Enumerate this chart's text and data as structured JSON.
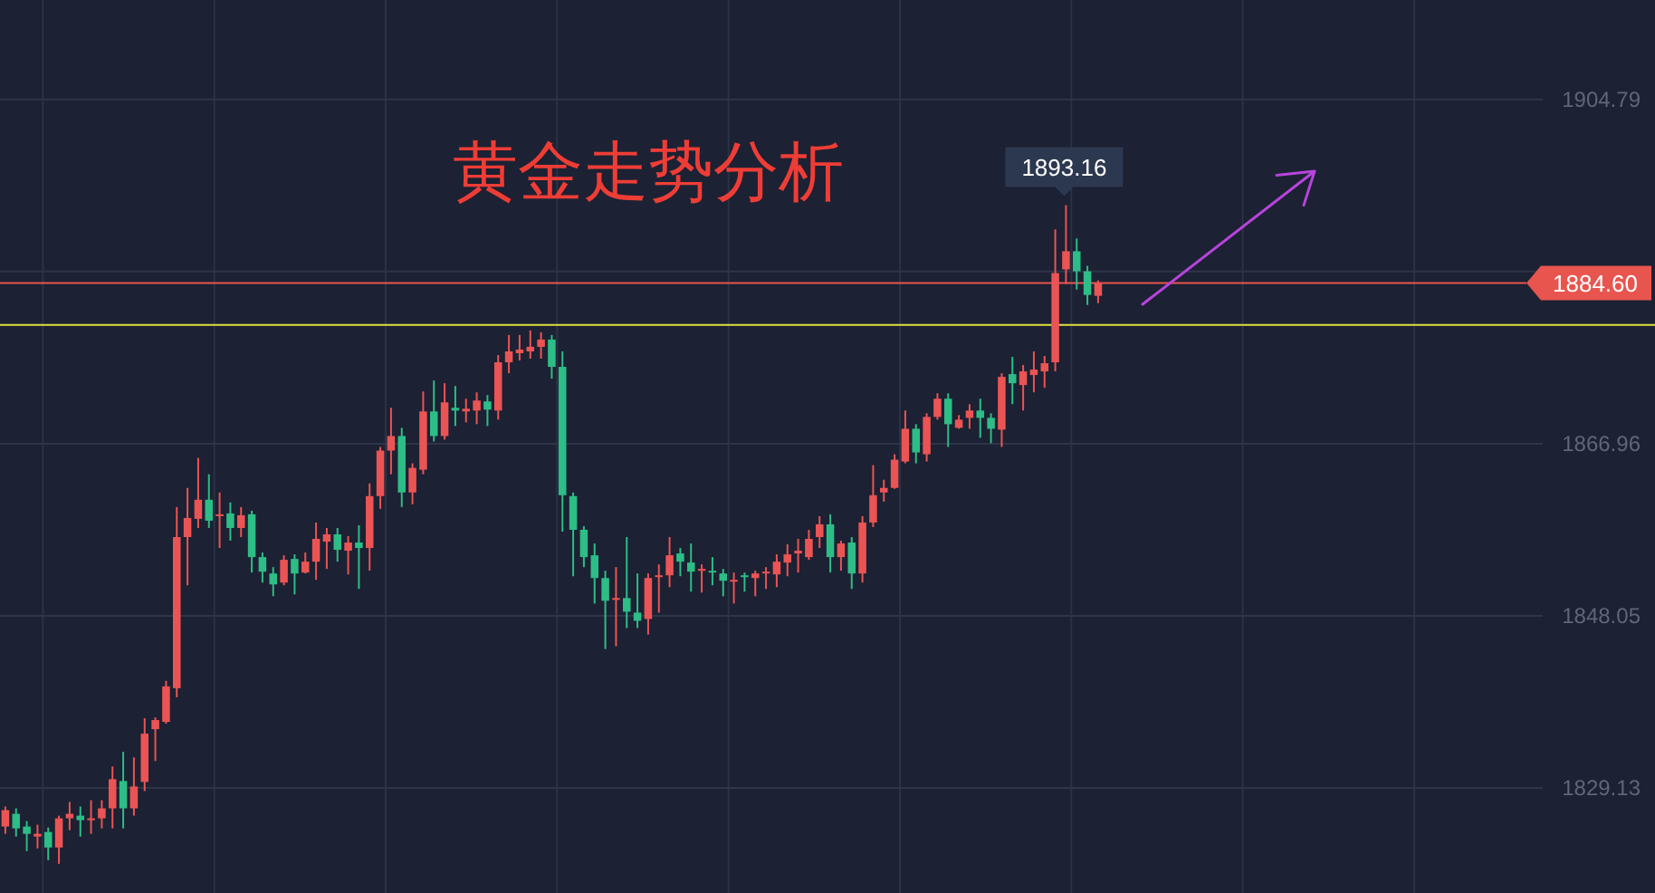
{
  "chart_data": {
    "type": "candlestick",
    "title": "黄金走势分析",
    "categories": [
      null,
      null,
      null,
      null,
      null,
      null,
      null,
      null,
      null,
      null,
      null,
      null,
      null,
      null,
      null,
      null,
      null,
      null,
      null,
      null,
      null,
      null,
      null,
      null,
      null,
      null,
      null,
      null,
      null,
      null,
      null,
      null,
      null,
      null,
      null,
      null,
      null,
      null,
      null,
      null,
      null,
      null,
      null,
      null,
      null,
      null,
      null,
      null,
      null,
      null,
      null,
      null,
      null,
      null,
      null,
      null,
      null,
      null,
      null,
      null,
      null,
      null,
      null,
      null,
      null,
      null,
      null,
      null,
      null,
      null,
      null,
      null,
      null,
      null,
      null,
      null,
      null,
      null,
      null,
      null,
      null,
      null,
      null,
      null,
      null,
      null,
      null,
      null,
      null,
      null,
      null,
      null,
      null,
      null,
      null,
      null,
      null,
      null,
      null,
      null,
      null,
      null,
      null,
      null,
      null,
      null,
      null,
      null,
      null,
      null,
      null,
      null,
      null,
      null,
      null,
      null,
      null,
      null,
      null,
      null,
      null,
      null,
      null,
      null,
      null,
      null,
      null,
      null,
      null,
      null,
      null,
      null,
      null,
      null,
      null,
      null,
      null,
      null,
      null,
      null,
      null,
      null,
      null,
      null
    ],
    "ohlc": [
      [
        1824.9,
        1827.1,
        1824.1,
        1826.7
      ],
      [
        1826.3,
        1826.9,
        1823.8,
        1824.7
      ],
      [
        1824.9,
        1825.5,
        1822.2,
        1824.1
      ],
      [
        1823.8,
        1825.1,
        1822.5,
        1824.1
      ],
      [
        1824.3,
        1824.8,
        1821.2,
        1822.6
      ],
      [
        1822.6,
        1826.1,
        1820.8,
        1825.8
      ],
      [
        1825.8,
        1827.6,
        1824.5,
        1826.3
      ],
      [
        1826.1,
        1827.1,
        1823.8,
        1825.6
      ],
      [
        1825.6,
        1827.8,
        1824.1,
        1825.8
      ],
      [
        1825.8,
        1827.8,
        1824.7,
        1826.9
      ],
      [
        1826.9,
        1831.5,
        1824.7,
        1830.1
      ],
      [
        1829.9,
        1833.1,
        1824.7,
        1826.9
      ],
      [
        1826.9,
        1832.5,
        1826.1,
        1829.3
      ],
      [
        1829.8,
        1836.8,
        1828.8,
        1835.1
      ],
      [
        1835.6,
        1836.9,
        1832.1,
        1836.6
      ],
      [
        1836.4,
        1840.9,
        1836.2,
        1840.3
      ],
      [
        1840.1,
        1860.0,
        1839.1,
        1856.7
      ],
      [
        1856.7,
        1862.1,
        1851.4,
        1858.8
      ],
      [
        1858.7,
        1865.4,
        1857.7,
        1860.8
      ],
      [
        1860.8,
        1863.6,
        1857.7,
        1858.5
      ],
      [
        1859.0,
        1861.6,
        1855.5,
        1859.2
      ],
      [
        1859.3,
        1860.5,
        1856.3,
        1857.7
      ],
      [
        1857.7,
        1860.0,
        1856.7,
        1859.1
      ],
      [
        1859.2,
        1859.6,
        1852.8,
        1854.5
      ],
      [
        1854.5,
        1855.0,
        1851.7,
        1852.9
      ],
      [
        1852.7,
        1853.4,
        1850.2,
        1851.5
      ],
      [
        1851.7,
        1854.7,
        1851.4,
        1854.2
      ],
      [
        1854.3,
        1854.8,
        1850.4,
        1852.7
      ],
      [
        1852.8,
        1855.0,
        1852.7,
        1854.0
      ],
      [
        1854.0,
        1858.3,
        1852.0,
        1856.5
      ],
      [
        1856.2,
        1857.7,
        1853.2,
        1857.0
      ],
      [
        1857.0,
        1857.7,
        1854.0,
        1855.3
      ],
      [
        1855.2,
        1856.8,
        1852.6,
        1856.1
      ],
      [
        1856.1,
        1858.0,
        1851.0,
        1855.5
      ],
      [
        1855.5,
        1862.6,
        1853.0,
        1861.2
      ],
      [
        1861.2,
        1866.6,
        1859.8,
        1866.2
      ],
      [
        1866.2,
        1870.9,
        1863.6,
        1867.8
      ],
      [
        1867.8,
        1868.7,
        1860.0,
        1861.6
      ],
      [
        1861.6,
        1864.8,
        1860.3,
        1864.3
      ],
      [
        1864.1,
        1872.7,
        1863.6,
        1870.5
      ],
      [
        1870.5,
        1873.9,
        1867.2,
        1867.8
      ],
      [
        1867.8,
        1873.6,
        1867.4,
        1871.5
      ],
      [
        1870.9,
        1873.3,
        1868.9,
        1870.6
      ],
      [
        1870.5,
        1871.9,
        1869.3,
        1870.8
      ],
      [
        1870.6,
        1872.6,
        1869.1,
        1871.7
      ],
      [
        1871.6,
        1872.3,
        1868.9,
        1870.7
      ],
      [
        1870.6,
        1876.7,
        1869.6,
        1875.9
      ],
      [
        1875.9,
        1878.9,
        1874.7,
        1877.1
      ],
      [
        1876.9,
        1878.9,
        1876.1,
        1877.3
      ],
      [
        1877.1,
        1879.4,
        1876.3,
        1877.6
      ],
      [
        1877.6,
        1879.2,
        1876.3,
        1878.4
      ],
      [
        1878.4,
        1878.9,
        1874.1,
        1875.4
      ],
      [
        1875.4,
        1877.1,
        1857.3,
        1861.3
      ],
      [
        1861.2,
        1861.6,
        1852.4,
        1857.5
      ],
      [
        1857.5,
        1857.9,
        1853.4,
        1854.5
      ],
      [
        1854.7,
        1856.0,
        1849.4,
        1852.2
      ],
      [
        1852.2,
        1853.0,
        1844.4,
        1849.7
      ],
      [
        1849.8,
        1853.4,
        1844.7,
        1850.0
      ],
      [
        1850.0,
        1856.7,
        1846.7,
        1848.5
      ],
      [
        1848.4,
        1852.7,
        1846.7,
        1847.5
      ],
      [
        1847.7,
        1852.7,
        1846.0,
        1852.2
      ],
      [
        1852.3,
        1853.7,
        1848.4,
        1852.5
      ],
      [
        1852.5,
        1856.7,
        1851.2,
        1854.7
      ],
      [
        1854.9,
        1855.5,
        1852.4,
        1854.0
      ],
      [
        1853.9,
        1856.0,
        1850.7,
        1852.9
      ],
      [
        1853.0,
        1853.7,
        1850.6,
        1853.2
      ],
      [
        1853.0,
        1854.5,
        1851.4,
        1852.8
      ],
      [
        1852.7,
        1853.2,
        1850.2,
        1851.9
      ],
      [
        1851.8,
        1852.8,
        1849.4,
        1852.0
      ],
      [
        1852.5,
        1852.8,
        1850.7,
        1852.3
      ],
      [
        1852.2,
        1853.0,
        1850.2,
        1852.7
      ],
      [
        1852.7,
        1853.4,
        1851.0,
        1852.9
      ],
      [
        1852.6,
        1854.8,
        1851.2,
        1854.0
      ],
      [
        1853.9,
        1855.9,
        1852.4,
        1854.8
      ],
      [
        1854.9,
        1856.5,
        1852.8,
        1855.2
      ],
      [
        1854.5,
        1857.5,
        1854.2,
        1856.5
      ],
      [
        1856.7,
        1859.0,
        1855.5,
        1858.1
      ],
      [
        1858.1,
        1859.2,
        1852.8,
        1854.5
      ],
      [
        1854.5,
        1856.3,
        1853.0,
        1856.0
      ],
      [
        1856.1,
        1856.7,
        1851.0,
        1852.7
      ],
      [
        1852.7,
        1859.0,
        1851.7,
        1858.3
      ],
      [
        1858.3,
        1864.6,
        1857.8,
        1861.3
      ],
      [
        1861.6,
        1863.0,
        1860.6,
        1862.1
      ],
      [
        1862.1,
        1865.8,
        1862.0,
        1865.2
      ],
      [
        1865.0,
        1870.6,
        1864.8,
        1868.6
      ],
      [
        1868.6,
        1869.1,
        1864.8,
        1866.0
      ],
      [
        1865.8,
        1870.3,
        1865.0,
        1869.9
      ],
      [
        1869.9,
        1872.5,
        1869.6,
        1871.9
      ],
      [
        1871.9,
        1872.5,
        1866.6,
        1869.1
      ],
      [
        1868.7,
        1870.1,
        1868.6,
        1869.6
      ],
      [
        1869.8,
        1871.3,
        1868.6,
        1870.6
      ],
      [
        1870.6,
        1871.9,
        1867.6,
        1869.8
      ],
      [
        1869.8,
        1870.3,
        1867.0,
        1868.6
      ],
      [
        1868.5,
        1874.7,
        1866.6,
        1874.3
      ],
      [
        1874.6,
        1876.5,
        1871.3,
        1873.6
      ],
      [
        1873.4,
        1875.6,
        1870.6,
        1874.9
      ],
      [
        1874.5,
        1877.1,
        1872.6,
        1875.1
      ],
      [
        1874.9,
        1876.6,
        1873.1,
        1875.8
      ],
      [
        1875.9,
        1890.5,
        1874.9,
        1885.7
      ],
      [
        1886.1,
        1893.16,
        1884.5,
        1888.1
      ],
      [
        1888.1,
        1889.5,
        1883.9,
        1885.9
      ],
      [
        1885.9,
        1886.5,
        1882.2,
        1883.3
      ],
      [
        1883.2,
        1884.9,
        1882.4,
        1884.6
      ],
      null,
      null,
      null,
      null,
      null,
      null,
      null,
      null,
      null,
      null,
      null,
      null,
      null,
      null,
      null,
      null,
      null,
      null,
      null,
      null,
      null,
      null,
      null,
      null,
      null,
      null,
      null,
      null,
      null,
      null,
      null,
      null,
      null,
      null,
      null,
      null,
      null,
      null,
      null,
      null,
      null
    ],
    "colors": [
      "#eb5454",
      "#2dbd86",
      "#2dbd86",
      "#eb5454",
      "#2dbd86",
      "#eb5454",
      "#eb5454",
      "#2dbd86",
      "#eb5454",
      "#eb5454",
      "#eb5454",
      "#2dbd86",
      "#eb5454",
      "#eb5454",
      "#eb5454",
      "#eb5454",
      "#eb5454",
      "#eb5454",
      "#eb5454",
      "#2dbd86",
      "#eb5454",
      "#2dbd86",
      "#eb5454",
      "#2dbd86",
      "#2dbd86",
      "#2dbd86",
      "#eb5454",
      "#2dbd86",
      "#eb5454",
      "#eb5454",
      "#eb5454",
      "#2dbd86",
      "#eb5454",
      "#2dbd86",
      "#eb5454",
      "#eb5454",
      "#eb5454",
      "#2dbd86",
      "#eb5454",
      "#eb5454",
      "#2dbd86",
      "#eb5454",
      "#2dbd86",
      "#eb5454",
      "#eb5454",
      "#2dbd86",
      "#eb5454",
      "#eb5454",
      "#eb5454",
      "#eb5454",
      "#eb5454",
      "#2dbd86",
      "#2dbd86",
      "#2dbd86",
      "#2dbd86",
      "#2dbd86",
      "#2dbd86",
      "#eb5454",
      "#2dbd86",
      "#2dbd86",
      "#eb5454",
      "#eb5454",
      "#eb5454",
      "#2dbd86",
      "#2dbd86",
      "#eb5454",
      "#2dbd86",
      "#2dbd86",
      "#eb5454",
      "#2dbd86",
      "#eb5454",
      "#eb5454",
      "#eb5454",
      "#eb5454",
      "#eb5454",
      "#eb5454",
      "#eb5454",
      "#2dbd86",
      "#eb5454",
      "#2dbd86",
      "#eb5454",
      "#eb5454",
      "#eb5454",
      "#eb5454",
      "#eb5454",
      "#2dbd86",
      "#eb5454",
      "#eb5454",
      "#2dbd86",
      "#eb5454",
      "#eb5454",
      "#2dbd86",
      "#2dbd86",
      "#eb5454",
      "#2dbd86",
      "#eb5454",
      "#eb5454",
      "#eb5454",
      "#eb5454",
      "#eb5454",
      "#2dbd86",
      "#2dbd86",
      "#eb5454",
      null,
      null,
      null,
      null,
      null,
      null,
      null,
      null,
      null,
      null,
      null,
      null,
      null,
      null,
      null,
      null,
      null,
      null,
      null,
      null,
      null,
      null,
      null,
      null,
      null,
      null,
      null,
      null,
      null,
      null,
      null,
      null,
      null,
      null,
      null,
      null,
      null,
      null,
      null,
      null,
      null
    ],
    "ylim": [
      1817.6,
      1915.7
    ],
    "yticks": [
      1829.13,
      1848.05,
      1866.96,
      {
        "value": 1885.87,
        "label": null
      },
      1904.79
    ],
    "grid": "y",
    "tick_labels": "y",
    "ref_lines": [
      {
        "axis": "y",
        "value": 1884.6,
        "label": "1884.60",
        "color": "#e8554e"
      },
      {
        "axis": "y",
        "value": 1880.0,
        "color": "#e0e040"
      }
    ],
    "annotations": [
      "1893.16"
    ]
  }
}
